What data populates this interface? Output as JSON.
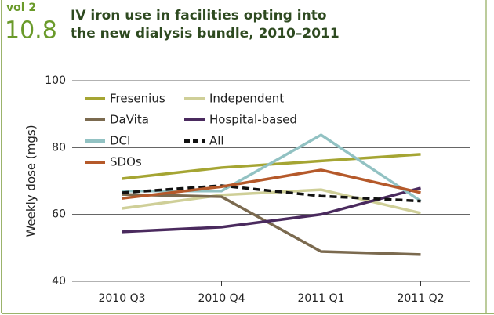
{
  "header": {
    "volume": "vol 2",
    "number": "10.8"
  },
  "chart_data": {
    "type": "line",
    "title": [
      "IV iron use in facilities opting into",
      "the new dialysis bundle, 2010–2011"
    ],
    "y_label": "Weekly dose (mgs)",
    "categories": [
      "2010 Q3",
      "2010 Q4",
      "2011 Q1",
      "2011 Q2"
    ],
    "ylim": [
      40,
      100
    ],
    "yticks": [
      40,
      60,
      80,
      100
    ],
    "grid": true,
    "series": [
      {
        "name": "Fresenius",
        "color": "#a5a533",
        "values": [
          70.7,
          74,
          76,
          78
        ]
      },
      {
        "name": "Independent",
        "color": "#cfcf98",
        "values": [
          61.8,
          65.8,
          67.4,
          60.4
        ]
      },
      {
        "name": "DaVita",
        "color": "#7b6a4f",
        "values": [
          66,
          65.3,
          48.9,
          48
        ]
      },
      {
        "name": "Hospital-based",
        "color": "#4a2a5e",
        "values": [
          54.8,
          56.2,
          60,
          67.9
        ]
      },
      {
        "name": "DCI",
        "color": "#92c2c3",
        "values": [
          67,
          67,
          83.8,
          64
        ]
      },
      {
        "name": "All",
        "color": "#111111",
        "dashed": true,
        "values": [
          66.5,
          68.6,
          65.5,
          64
        ]
      },
      {
        "name": "SDOs",
        "color": "#b5592a",
        "values": [
          64.8,
          68.3,
          73.3,
          66.5
        ]
      }
    ]
  }
}
